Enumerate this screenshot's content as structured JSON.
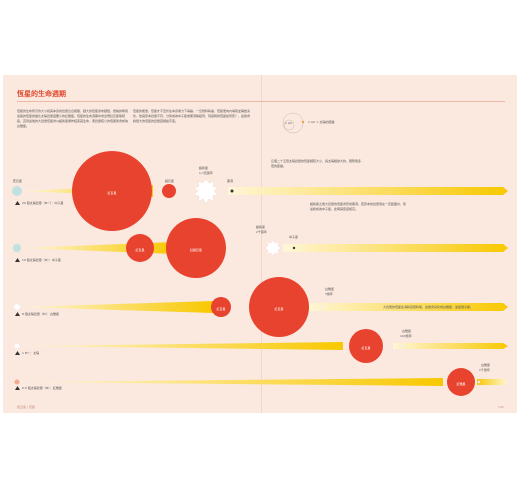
{
  "header": {
    "title": "恆星的生命週期"
  },
  "intro": {
    "left": "恆星的生命所示的大小和其本身的質量息息相關，越大的恆星壽命越短，燃燒的時間最長的恆星當屬比太陽質量還要小的紅矮星。恆星的生命週期中會出現紅巨星等階段，直到最後的大質量恆星會以超新星爆炸結束其生命，而質量較小的恆星則會成為白矮星。",
    "right": "恆星的能量，恆星才不至於在本身重力下塌縮，一旦燃料耗盡，恆星便向內塌陷並開始演化，依其原本質量不同，分別成為中子星或黑洞等結局，到底時候恆星如何死？，最後會將很大的恆星的質量回饋給宇宙。"
  },
  "diagram": {
    "inner_label": "1 AU",
    "outer_label": "1 AU = 太陽的距離",
    "note": "這個二十五倍太陽質量的恆星相較大小，與太陽相當大約，實際很多倍的距離。"
  },
  "notes": {
    "row1": "超新星之後大質量的恆星會形成黑洞，若原本的質量落在一定範圍內，則最終成為中子星，此時其密度極高。",
    "row3": "大質量的恆星在消耗完燃料後，最後會演化成白矮星，並緩慢冷卻。"
  },
  "rows": [
    {
      "type": "藍巨星",
      "mass": "20 個太陽質量（M☉）：中子星",
      "color": "#bfe1e0",
      "stages": [
        {
          "name": "紅巨星",
          "kind": "giant"
        },
        {
          "name": "超巨星",
          "kind": "flash",
          "sub": "超新星\n與7百萬年"
        },
        {
          "name": "黑洞",
          "kind": "end"
        }
      ],
      "labels": {
        "supernova": "超新星",
        "supernova_sub": "1-7百萬年",
        "blackhole": "黑洞"
      }
    },
    {
      "type": "",
      "mass": "10 個太陽質量（M）：中子星",
      "color": "#bfe1e0",
      "stages": [
        {
          "name": "紅巨星"
        },
        {
          "name": "紅超巨星"
        }
      ],
      "labels": {
        "supernova": "超新星",
        "supernova_sub": "2千萬年",
        "neutron": "中子星"
      }
    },
    {
      "type": "",
      "mass": "8 個太陽質量（M）：白矮星",
      "color": "#ffffff",
      "stages": [
        {
          "name": "紅巨星"
        },
        {
          "name": "紅巨星"
        }
      ],
      "labels": {
        "end": "白矮星",
        "end_sub": "3億年"
      }
    },
    {
      "type": "",
      "mass": "1 M☉：太陽",
      "color": "#ffffff",
      "stages": [
        {
          "name": "紅巨星"
        }
      ],
      "labels": {
        "end": "白矮星",
        "end_sub": "100億年"
      }
    },
    {
      "type": "",
      "mass": "0.5 個太陽質量（M）：紅矮星",
      "color": "#f6a98f",
      "stages": [
        {
          "name": "紅矮星"
        }
      ],
      "labels": {
        "end": "白矮星",
        "end_sub": "1千億年"
      }
    }
  ],
  "footer": {
    "left": "星空長 | 恆星",
    "right": "145"
  },
  "colors": {
    "giant": "#e8432e",
    "bar_start": "#fff6d6",
    "bar_end": "#f8c800",
    "accent": "#e0492e"
  }
}
